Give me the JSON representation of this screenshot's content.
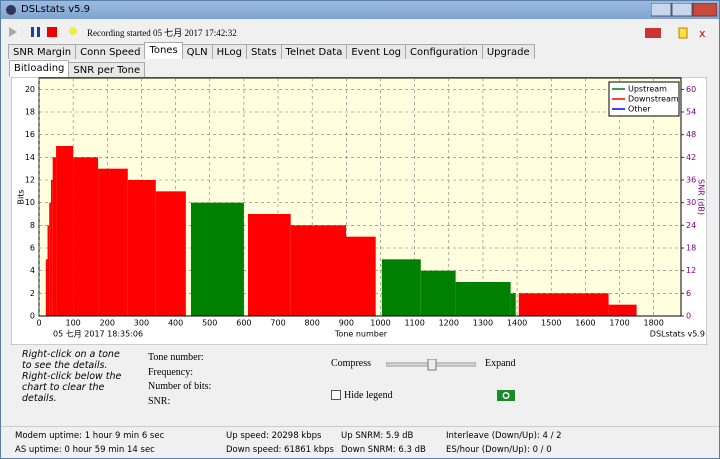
{
  "window_title": "DSLstats v5.9",
  "toolbar": {
    "status": "Recording started 05 七月 2017 17:42:32"
  },
  "tabs": [
    "SNR Margin",
    "Conn Speed",
    "Tones",
    "QLN",
    "HLog",
    "Stats",
    "Telnet Data",
    "Event Log",
    "Configuration",
    "Upgrade"
  ],
  "active_tab": "Tones",
  "subtabs": [
    "Bitloading",
    "SNR per Tone"
  ],
  "chart_data": {
    "type": "step-area",
    "xlabel": "Tone number",
    "ylabel": "Bits",
    "y2label": "SNR (dB)",
    "timestamp": "05 七月 2017 18:35:06",
    "watermark": "DSLstats v5.9",
    "xlim": [
      0,
      1880
    ],
    "xticks": [
      0,
      100,
      200,
      300,
      400,
      500,
      600,
      700,
      800,
      900,
      1000,
      1100,
      1200,
      1300,
      1400,
      1500,
      1600,
      1700,
      1800
    ],
    "ylim": [
      0,
      21
    ],
    "yticks": [
      0,
      2,
      4,
      6,
      8,
      10,
      12,
      14,
      16,
      18,
      20
    ],
    "y2lim": [
      0,
      63
    ],
    "y2ticks": [
      0,
      6,
      12,
      18,
      24,
      30,
      36,
      42,
      48,
      54,
      60
    ],
    "grid": true,
    "background": "#ffffe0",
    "legend": "top-right",
    "series": [
      {
        "name": "Upstream",
        "color": "#008000",
        "x": [
          445,
          600,
          1004,
          1118,
          1220,
          1381,
          1396
        ],
        "values": [
          10,
          null,
          5,
          4,
          3,
          2,
          null
        ]
      },
      {
        "name": "Downstream",
        "color": "#ff0000",
        "x": [
          20,
          25,
          30,
          35,
          40,
          50,
          100,
          173,
          260,
          342,
          430,
          612,
          737,
          899,
          986,
          1405,
          1668,
          1750
        ],
        "values": [
          5,
          8,
          10,
          12,
          14,
          15,
          14,
          13,
          12,
          11,
          null,
          9,
          8,
          7,
          null,
          2,
          1,
          null
        ]
      },
      {
        "name": "Other",
        "color": "#0000ff",
        "x": [],
        "values": []
      }
    ]
  },
  "details": {
    "hint": "Right-click on a tone to see the details. Right-click below the chart to clear the details.",
    "fields": [
      "Tone number:",
      "Frequency:",
      "Number of bits:",
      "SNR:"
    ],
    "compress": "Compress",
    "expand": "Expand",
    "hide_legend": "Hide legend"
  },
  "status": [
    [
      "Modem uptime:  1 hour 9 min 6 sec",
      "Up speed: 20298 kbps",
      "Up SNRM: 5.9 dB",
      "Interleave (Down/Up): 4 / 2"
    ],
    [
      "AS uptime:  0 hour 59 min 14 sec",
      "Down speed: 61861 kbps",
      "Down SNRM: 6.3 dB",
      "ES/hour (Down/Up): 0 / 0"
    ]
  ]
}
